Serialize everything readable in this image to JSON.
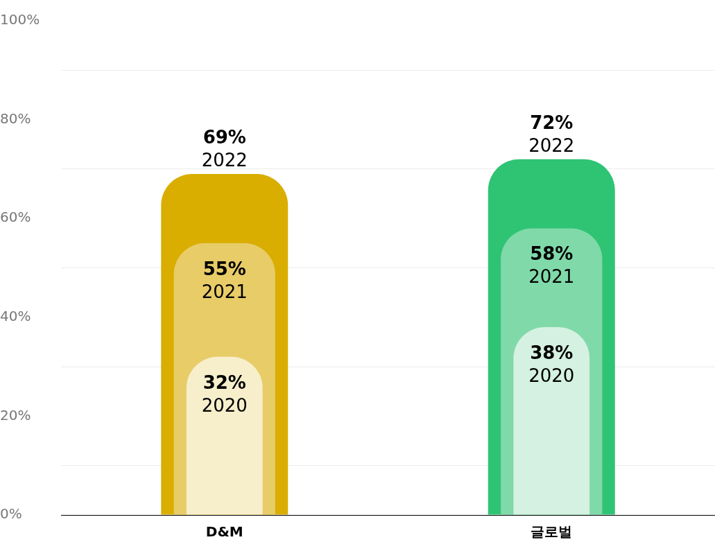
{
  "chart_data": {
    "type": "bar",
    "categories": [
      "D&M",
      "글로벌"
    ],
    "series": [
      {
        "name": "2022",
        "colors": [
          "#d9ae00",
          "#2ec474"
        ],
        "values": [
          69,
          72
        ],
        "value_labels": [
          "69%",
          "72%"
        ]
      },
      {
        "name": "2021",
        "colors": [
          "#e8cc68",
          "#80d9a8"
        ],
        "values": [
          55,
          58
        ],
        "value_labels": [
          "55%",
          "58%"
        ]
      },
      {
        "name": "2020",
        "colors": [
          "#f7efcb",
          "#d5f1e1"
        ],
        "values": [
          32,
          38
        ],
        "value_labels": [
          "32%",
          "38%"
        ]
      }
    ],
    "ylim": [
      0,
      100
    ],
    "yticks": [
      {
        "value": 0,
        "label": "0%"
      },
      {
        "value": 10,
        "label": null
      },
      {
        "value": 20,
        "label": "20%"
      },
      {
        "value": 30,
        "label": null
      },
      {
        "value": 40,
        "label": "40%"
      },
      {
        "value": 50,
        "label": null
      },
      {
        "value": 60,
        "label": "60%"
      },
      {
        "value": 70,
        "label": null
      },
      {
        "value": 80,
        "label": "80%"
      },
      {
        "value": 90,
        "label": null
      },
      {
        "value": 100,
        "label": "100%"
      }
    ],
    "grid": "y",
    "legend": false
  }
}
